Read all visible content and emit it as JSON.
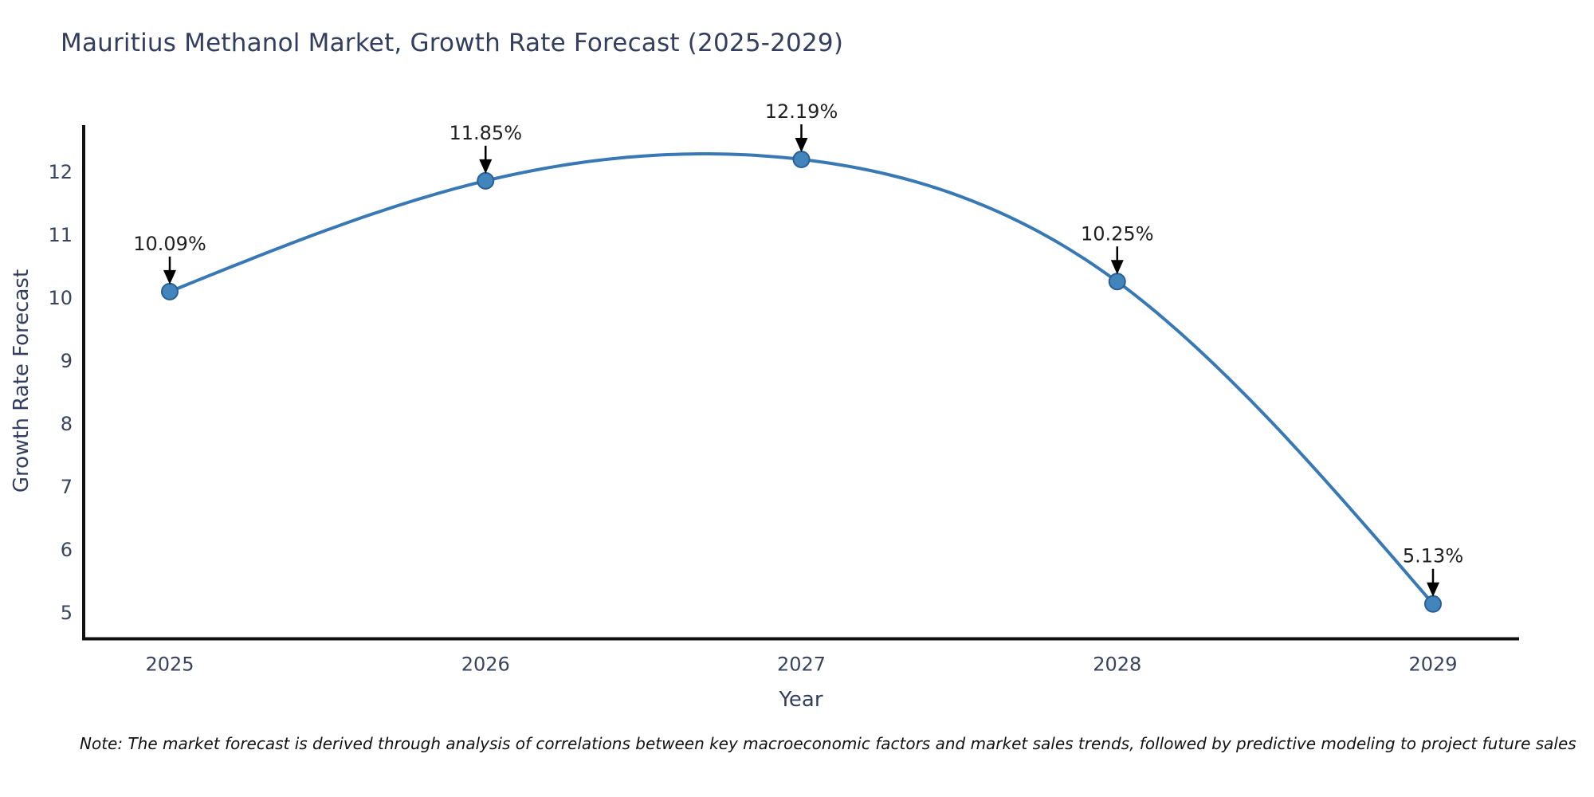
{
  "chart_data": {
    "type": "line",
    "title": "Mauritius Methanol Market, Growth Rate Forecast (2025-2029)",
    "xlabel": "Year",
    "ylabel": "Growth Rate Forecast",
    "x": [
      2025,
      2026,
      2027,
      2028,
      2029
    ],
    "series": [
      {
        "name": "Growth Rate Forecast",
        "values": [
          10.09,
          11.85,
          12.19,
          10.25,
          5.13
        ],
        "point_labels": [
          "10.09%",
          "11.85%",
          "12.19%",
          "10.25%",
          "5.13%"
        ]
      }
    ],
    "xticks": [
      "2025",
      "2026",
      "2027",
      "2028",
      "2029"
    ],
    "yticks": [
      5,
      6,
      7,
      8,
      9,
      10,
      11,
      12
    ],
    "ylim": [
      4.6,
      12.72
    ],
    "grid": false,
    "legend_position": "none",
    "smooth_curve": true,
    "annotations_have_arrows": true,
    "colors": {
      "line": "#3878b4",
      "marker_fill": "#4284bc",
      "marker_edge": "#295f93",
      "axis": "#111111",
      "tick_text": "#39425f",
      "annotation_text": "#1f1f1f",
      "arrow": "#000000",
      "background": "#ffffff"
    }
  },
  "footnote": "Note: The market forecast is derived through analysis of correlations between key macroeconomic factors and market sales trends, followed by predictive modeling to project future sales"
}
